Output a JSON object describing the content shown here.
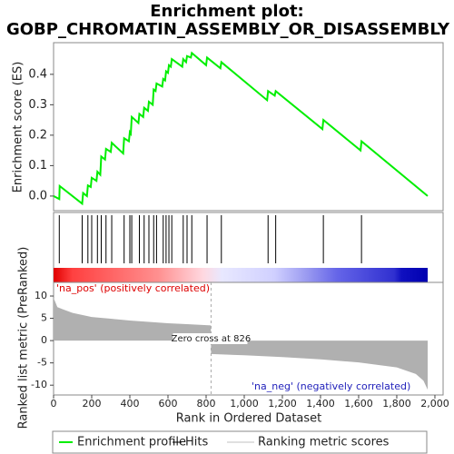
{
  "chart_data": {
    "type": "line",
    "title": "Enrichment plot:",
    "subtitle": "GOBP_CHROMATIN_ASSEMBLY_OR_DISASSEMBLY",
    "ylabel": "Enrichment score (ES)",
    "xlabel": "Rank in Ordered Dataset",
    "xlim": [
      0,
      2043
    ],
    "xticks": [
      0,
      200,
      400,
      600,
      800,
      {
        "value": 1000,
        "label": "1,000"
      },
      {
        "value": 1200,
        "label": "1,200"
      },
      {
        "value": 1400,
        "label": "1,400"
      },
      {
        "value": 1600,
        "label": "1,600"
      },
      {
        "value": 1800,
        "label": "1,800"
      },
      {
        "value": 2000,
        "label": "2,000"
      }
    ],
    "ylim": [
      -0.048,
      0.504
    ],
    "yticks": [
      {
        "value": 0,
        "label": "0.0"
      },
      0.1,
      0.2,
      0.3,
      0.4
    ],
    "x": [
      0,
      30,
      32,
      150,
      155,
      175,
      180,
      195,
      200,
      225,
      230,
      245,
      250,
      270,
      275,
      300,
      305,
      365,
      370,
      395,
      400,
      405,
      410,
      445,
      450,
      470,
      475,
      495,
      500,
      520,
      525,
      535,
      540,
      570,
      575,
      585,
      590,
      600,
      605,
      615,
      620,
      675,
      680,
      695,
      700,
      720,
      725,
      800,
      805,
      875,
      880,
      1120,
      1125,
      1160,
      1165,
      1410,
      1415,
      1610,
      1615,
      1962
    ],
    "series": [
      {
        "name": "Enrichment profile",
        "color": "#00ee00",
        "values": [
          0.0,
          -0.01,
          0.033,
          -0.025,
          0.01,
          0.0,
          0.035,
          0.03,
          0.06,
          0.05,
          0.08,
          0.07,
          0.13,
          0.12,
          0.155,
          0.145,
          0.175,
          0.14,
          0.19,
          0.18,
          0.21,
          0.205,
          0.26,
          0.24,
          0.27,
          0.26,
          0.29,
          0.28,
          0.31,
          0.3,
          0.35,
          0.345,
          0.37,
          0.36,
          0.385,
          0.38,
          0.41,
          0.405,
          0.43,
          0.425,
          0.45,
          0.425,
          0.45,
          0.44,
          0.46,
          0.455,
          0.47,
          0.43,
          0.455,
          0.42,
          0.44,
          0.315,
          0.345,
          0.33,
          0.345,
          0.22,
          0.25,
          0.15,
          0.18,
          0.0
        ]
      }
    ],
    "hits": {
      "name": "Hits",
      "color": "#000000",
      "x": [
        30,
        150,
        180,
        200,
        230,
        250,
        275,
        305,
        370,
        400,
        410,
        450,
        475,
        500,
        525,
        540,
        575,
        590,
        605,
        620,
        680,
        700,
        725,
        805,
        880,
        1125,
        1165,
        1415,
        1615
      ]
    },
    "metric": {
      "name": "Ranking metric scores",
      "color": "#c0c0c0",
      "fill": "#b0b0b0",
      "ylabel": "Ranked list metric (PreRanked)",
      "ylim": [
        -12.2,
        13.06
      ],
      "yticks": [
        10,
        5,
        0,
        -5,
        -10
      ],
      "x": [
        0,
        20,
        50,
        100,
        200,
        300,
        400,
        500,
        600,
        700,
        825,
        826,
        1000,
        1200,
        1400,
        1600,
        1800,
        1900,
        1940,
        1962
      ],
      "values": [
        9.6,
        7.5,
        7.0,
        6.2,
        5.3,
        4.9,
        4.5,
        4.2,
        3.9,
        3.7,
        3.4,
        -3.0,
        -3.3,
        -3.7,
        -4.2,
        -4.9,
        -6.0,
        -7.5,
        -9.0,
        -11.0
      ],
      "zero_cross": 826,
      "zero_cross_label": "Zero cross at 826",
      "pos_label": "'na_pos' (positively correlated)",
      "neg_label": "'na_neg' (negatively correlated)"
    }
  }
}
